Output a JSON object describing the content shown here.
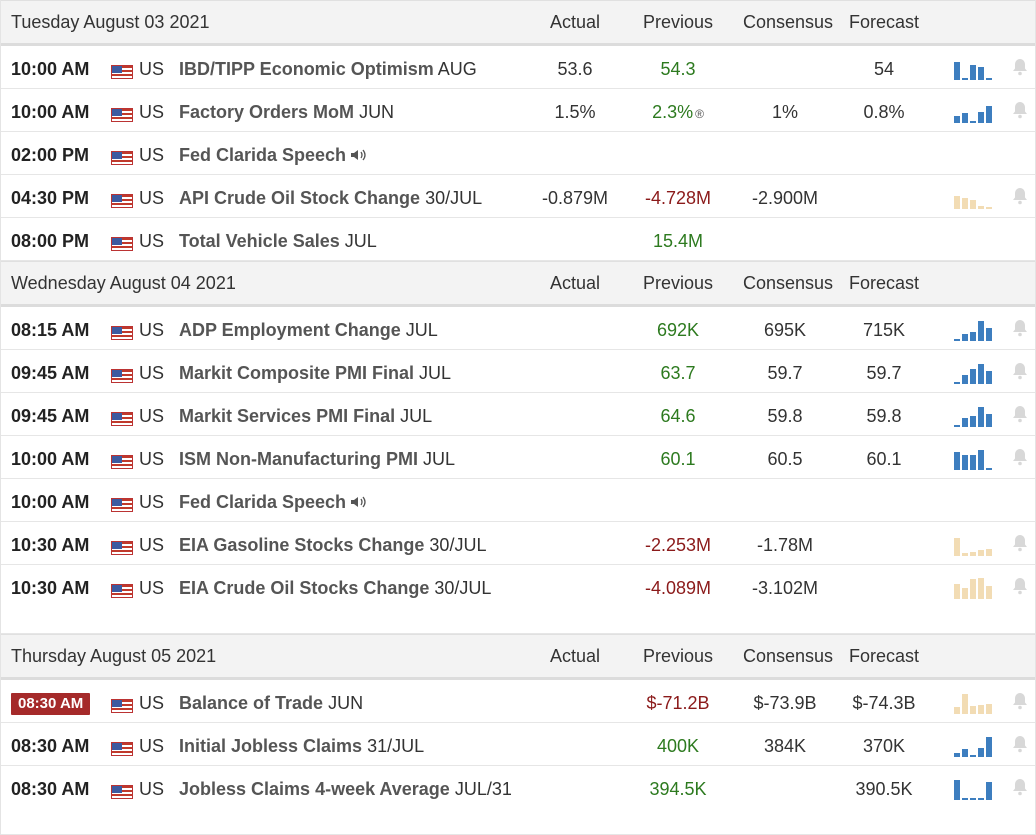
{
  "columns": {
    "actual": "Actual",
    "previous": "Previous",
    "consensus": "Consensus",
    "forecast": "Forecast"
  },
  "colors": {
    "blue_bar": "#3d7ebf",
    "tan_bar": "#f2dcb4",
    "accent_red": "#a52a2a",
    "green": "#2d7a1f",
    "red": "#8b1a1a"
  },
  "days": [
    {
      "title": "Tuesday August 03 2021",
      "events": [
        {
          "time": "10:00 AM",
          "country": "US",
          "name": "IBD/TIPP Economic Optimism",
          "period": "AUG",
          "actual": "53.6",
          "previous": "54.3",
          "previous_color": "green",
          "consensus": "",
          "forecast": "54",
          "chart": {
            "color": "blue",
            "bars": [
              0.8,
              0.1,
              0.7,
              0.6,
              0.1
            ]
          },
          "lines": 1
        },
        {
          "time": "10:00 AM",
          "country": "US",
          "name": "Factory Orders MoM",
          "period": "JUN",
          "actual": "1.5%",
          "previous": "2.3%",
          "previous_color": "green",
          "revised": "®",
          "consensus": "1%",
          "forecast": "0.8%",
          "chart": {
            "color": "blue",
            "bars": [
              0.3,
              0.45,
              0.1,
              0.5,
              0.75
            ]
          },
          "lines": 1
        },
        {
          "time": "02:00 PM",
          "country": "US",
          "name": "Fed Clarida Speech",
          "period": "",
          "speech": true,
          "actual": "",
          "previous": "",
          "consensus": "",
          "forecast": "",
          "lines": 1
        },
        {
          "time": "04:30 PM",
          "country": "US",
          "name": "API Crude Oil Stock Change",
          "period": "30/JUL",
          "actual": "-0.879M",
          "previous": "-4.728M",
          "previous_color": "red",
          "consensus": "-2.900M",
          "forecast": "",
          "chart": {
            "color": "tan",
            "bars": [
              0.6,
              0.5,
              0.4,
              0.15,
              0.1
            ]
          },
          "lines": 1
        },
        {
          "time": "08:00 PM",
          "country": "US",
          "name": "Total Vehicle Sales",
          "period": "JUL",
          "actual": "",
          "previous": "15.4M",
          "previous_color": "green",
          "consensus": "",
          "forecast": "",
          "lines": 1
        }
      ]
    },
    {
      "title": "Wednesday August 04 2021",
      "events": [
        {
          "time": "08:15 AM",
          "country": "US",
          "name": "ADP Employment Change",
          "period": "JUL",
          "actual": "",
          "previous": "692K",
          "previous_color": "green",
          "consensus": "695K",
          "forecast": "715K",
          "chart": {
            "color": "blue",
            "bars": [
              0.1,
              0.3,
              0.4,
              0.9,
              0.6
            ]
          },
          "lines": 1
        },
        {
          "time": "09:45 AM",
          "country": "US",
          "name": "Markit Composite PMI Final",
          "period": "JUL",
          "actual": "",
          "previous": "63.7",
          "previous_color": "green",
          "consensus": "59.7",
          "forecast": "59.7",
          "chart": {
            "color": "blue",
            "bars": [
              0.1,
              0.4,
              0.7,
              0.9,
              0.6
            ]
          },
          "lines": 1
        },
        {
          "time": "09:45 AM",
          "country": "US",
          "name": "Markit Services PMI Final",
          "period": "JUL",
          "actual": "",
          "previous": "64.6",
          "previous_color": "green",
          "consensus": "59.8",
          "forecast": "59.8",
          "chart": {
            "color": "blue",
            "bars": [
              0.1,
              0.4,
              0.5,
              0.9,
              0.6
            ]
          },
          "lines": 1
        },
        {
          "time": "10:00 AM",
          "country": "US",
          "name": "ISM Non-Manufacturing PMI",
          "period": "JUL",
          "actual": "",
          "previous": "60.1",
          "previous_color": "green",
          "consensus": "60.5",
          "forecast": "60.1",
          "chart": {
            "color": "blue",
            "bars": [
              0.8,
              0.7,
              0.7,
              0.9,
              0.1
            ]
          },
          "lines": 1
        },
        {
          "time": "10:00 AM",
          "country": "US",
          "name": "Fed Clarida Speech",
          "period": "",
          "speech": true,
          "actual": "",
          "previous": "",
          "consensus": "",
          "forecast": "",
          "lines": 1
        },
        {
          "time": "10:30 AM",
          "country": "US",
          "name": "EIA Gasoline Stocks Change",
          "period": "30/JUL",
          "actual": "",
          "previous": "-2.253M",
          "previous_color": "red",
          "consensus": "-1.78M",
          "forecast": "",
          "chart": {
            "color": "tan",
            "bars": [
              0.8,
              0.15,
              0.2,
              0.25,
              0.3
            ]
          },
          "lines": 1
        },
        {
          "time": "10:30 AM",
          "country": "US",
          "name": "EIA Crude Oil Stocks Change",
          "period": "30/JUL",
          "actual": "",
          "previous": "-4.089M",
          "previous_color": "red",
          "consensus": "-3.102M",
          "forecast": "",
          "chart": {
            "color": "tan",
            "bars": [
              0.7,
              0.5,
              0.9,
              0.95,
              0.6
            ]
          },
          "lines": 2
        }
      ]
    },
    {
      "title": "Thursday August 05 2021",
      "events": [
        {
          "time": "08:30 AM",
          "country": "US",
          "name": "Balance of Trade",
          "period": "JUN",
          "highlight": true,
          "actual": "",
          "previous": "$-71.2B",
          "previous_color": "red",
          "consensus": "$-73.9B",
          "forecast": "$-74.3B",
          "chart": {
            "color": "tan",
            "bars": [
              0.3,
              0.9,
              0.35,
              0.4,
              0.45
            ]
          },
          "lines": 1
        },
        {
          "time": "08:30 AM",
          "country": "US",
          "name": "Initial Jobless Claims",
          "period": "31/JUL",
          "actual": "",
          "previous": "400K",
          "previous_color": "green",
          "consensus": "384K",
          "forecast": "370K",
          "chart": {
            "color": "blue",
            "bars": [
              0.2,
              0.35,
              0.1,
              0.4,
              0.9
            ]
          },
          "lines": 1
        },
        {
          "time": "08:30 AM",
          "country": "US",
          "name": "Jobless Claims 4-week Average",
          "period": "JUL/31",
          "actual": "",
          "previous": "394.5K",
          "previous_color": "green",
          "consensus": "",
          "forecast": "390.5K",
          "chart": {
            "color": "blue",
            "bars": [
              0.9,
              0.1,
              0.1,
              0.1,
              0.8
            ]
          },
          "lines": 2
        }
      ]
    }
  ]
}
